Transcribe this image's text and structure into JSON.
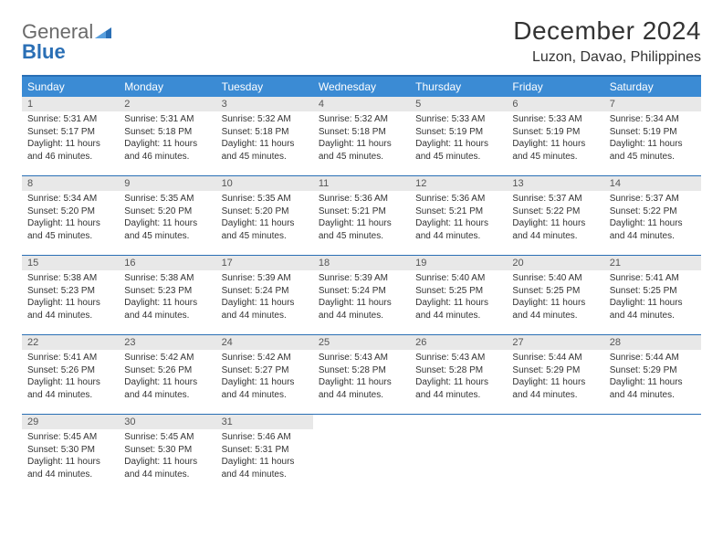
{
  "logo": {
    "gray": "General",
    "blue": "Blue"
  },
  "title": "December 2024",
  "location": "Luzon, Davao, Philippines",
  "colors": {
    "header_bg": "#3b8bd4",
    "header_text": "#ffffff",
    "border": "#2a6fb5",
    "daynum_bg": "#e8e8e8",
    "body_text": "#333333",
    "logo_gray": "#6a6a6a",
    "logo_blue": "#2a6fb5"
  },
  "day_names": [
    "Sunday",
    "Monday",
    "Tuesday",
    "Wednesday",
    "Thursday",
    "Friday",
    "Saturday"
  ],
  "weeks": [
    [
      {
        "n": "1",
        "sr": "5:31 AM",
        "ss": "5:17 PM",
        "dl": "11 hours and 46 minutes."
      },
      {
        "n": "2",
        "sr": "5:31 AM",
        "ss": "5:18 PM",
        "dl": "11 hours and 46 minutes."
      },
      {
        "n": "3",
        "sr": "5:32 AM",
        "ss": "5:18 PM",
        "dl": "11 hours and 45 minutes."
      },
      {
        "n": "4",
        "sr": "5:32 AM",
        "ss": "5:18 PM",
        "dl": "11 hours and 45 minutes."
      },
      {
        "n": "5",
        "sr": "5:33 AM",
        "ss": "5:19 PM",
        "dl": "11 hours and 45 minutes."
      },
      {
        "n": "6",
        "sr": "5:33 AM",
        "ss": "5:19 PM",
        "dl": "11 hours and 45 minutes."
      },
      {
        "n": "7",
        "sr": "5:34 AM",
        "ss": "5:19 PM",
        "dl": "11 hours and 45 minutes."
      }
    ],
    [
      {
        "n": "8",
        "sr": "5:34 AM",
        "ss": "5:20 PM",
        "dl": "11 hours and 45 minutes."
      },
      {
        "n": "9",
        "sr": "5:35 AM",
        "ss": "5:20 PM",
        "dl": "11 hours and 45 minutes."
      },
      {
        "n": "10",
        "sr": "5:35 AM",
        "ss": "5:20 PM",
        "dl": "11 hours and 45 minutes."
      },
      {
        "n": "11",
        "sr": "5:36 AM",
        "ss": "5:21 PM",
        "dl": "11 hours and 45 minutes."
      },
      {
        "n": "12",
        "sr": "5:36 AM",
        "ss": "5:21 PM",
        "dl": "11 hours and 44 minutes."
      },
      {
        "n": "13",
        "sr": "5:37 AM",
        "ss": "5:22 PM",
        "dl": "11 hours and 44 minutes."
      },
      {
        "n": "14",
        "sr": "5:37 AM",
        "ss": "5:22 PM",
        "dl": "11 hours and 44 minutes."
      }
    ],
    [
      {
        "n": "15",
        "sr": "5:38 AM",
        "ss": "5:23 PM",
        "dl": "11 hours and 44 minutes."
      },
      {
        "n": "16",
        "sr": "5:38 AM",
        "ss": "5:23 PM",
        "dl": "11 hours and 44 minutes."
      },
      {
        "n": "17",
        "sr": "5:39 AM",
        "ss": "5:24 PM",
        "dl": "11 hours and 44 minutes."
      },
      {
        "n": "18",
        "sr": "5:39 AM",
        "ss": "5:24 PM",
        "dl": "11 hours and 44 minutes."
      },
      {
        "n": "19",
        "sr": "5:40 AM",
        "ss": "5:25 PM",
        "dl": "11 hours and 44 minutes."
      },
      {
        "n": "20",
        "sr": "5:40 AM",
        "ss": "5:25 PM",
        "dl": "11 hours and 44 minutes."
      },
      {
        "n": "21",
        "sr": "5:41 AM",
        "ss": "5:25 PM",
        "dl": "11 hours and 44 minutes."
      }
    ],
    [
      {
        "n": "22",
        "sr": "5:41 AM",
        "ss": "5:26 PM",
        "dl": "11 hours and 44 minutes."
      },
      {
        "n": "23",
        "sr": "5:42 AM",
        "ss": "5:26 PM",
        "dl": "11 hours and 44 minutes."
      },
      {
        "n": "24",
        "sr": "5:42 AM",
        "ss": "5:27 PM",
        "dl": "11 hours and 44 minutes."
      },
      {
        "n": "25",
        "sr": "5:43 AM",
        "ss": "5:28 PM",
        "dl": "11 hours and 44 minutes."
      },
      {
        "n": "26",
        "sr": "5:43 AM",
        "ss": "5:28 PM",
        "dl": "11 hours and 44 minutes."
      },
      {
        "n": "27",
        "sr": "5:44 AM",
        "ss": "5:29 PM",
        "dl": "11 hours and 44 minutes."
      },
      {
        "n": "28",
        "sr": "5:44 AM",
        "ss": "5:29 PM",
        "dl": "11 hours and 44 minutes."
      }
    ],
    [
      {
        "n": "29",
        "sr": "5:45 AM",
        "ss": "5:30 PM",
        "dl": "11 hours and 44 minutes."
      },
      {
        "n": "30",
        "sr": "5:45 AM",
        "ss": "5:30 PM",
        "dl": "11 hours and 44 minutes."
      },
      {
        "n": "31",
        "sr": "5:46 AM",
        "ss": "5:31 PM",
        "dl": "11 hours and 44 minutes."
      },
      null,
      null,
      null,
      null
    ]
  ],
  "labels": {
    "sunrise": "Sunrise:",
    "sunset": "Sunset:",
    "daylight": "Daylight:"
  }
}
